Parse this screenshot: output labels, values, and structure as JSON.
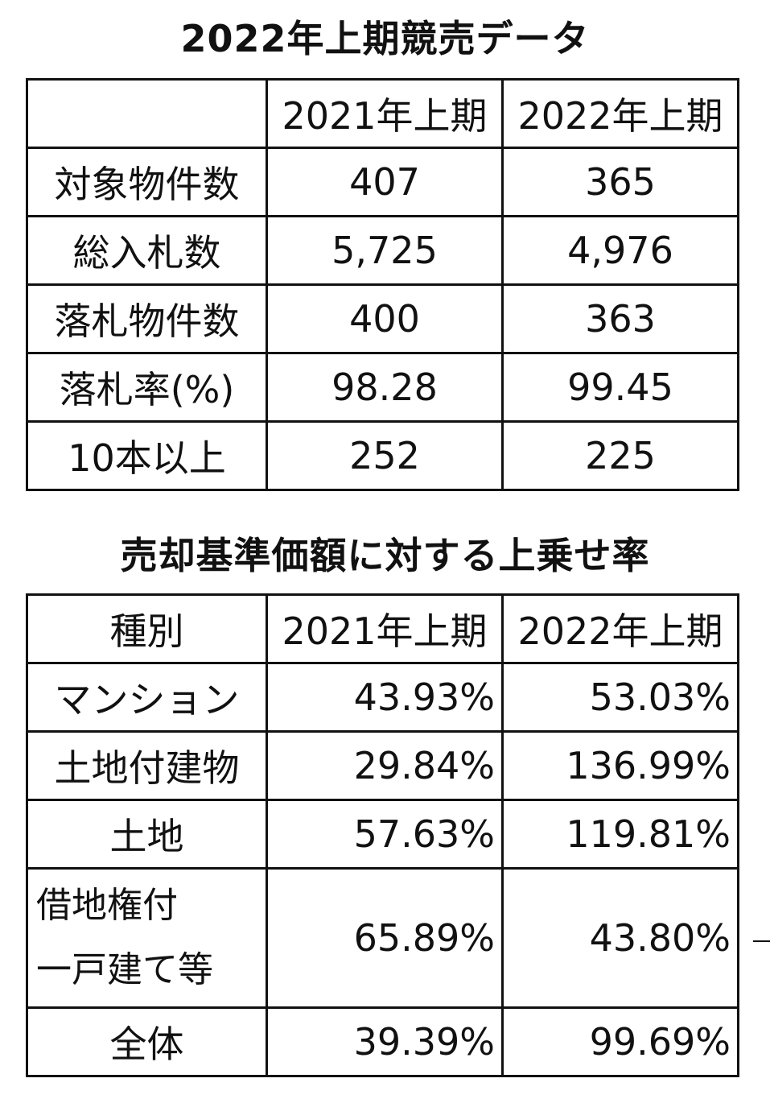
{
  "section1": {
    "title": "2022年上期競売データ",
    "headers": [
      "",
      "2021年上期",
      "2022年上期"
    ],
    "rows": [
      {
        "label": "対象物件数",
        "v2021": "407",
        "v2022": "365"
      },
      {
        "label": "総入札数",
        "v2021": "5,725",
        "v2022": "4,976"
      },
      {
        "label": "落札物件数",
        "v2021": "400",
        "v2022": "363"
      },
      {
        "label": "落札率(%)",
        "v2021": "98.28",
        "v2022": "99.45"
      },
      {
        "label": "10本以上",
        "v2021": "252",
        "v2022": "225"
      }
    ]
  },
  "section2": {
    "title": "売却基準価額に対する上乗せ率",
    "headers": [
      "種別",
      "2021年上期",
      "2022年上期"
    ],
    "rows": [
      {
        "label": "マンション",
        "v2021": "43.93%",
        "v2022": "53.03%"
      },
      {
        "label": "土地付建物",
        "v2021": "29.84%",
        "v2022": "136.99%"
      },
      {
        "label": "土地",
        "v2021": "57.63%",
        "v2022": "119.81%"
      },
      {
        "label_line1": "借地権付",
        "label_line2": "一戸建て等",
        "v2021": "65.89%",
        "v2022": "43.80%"
      },
      {
        "label": "全体",
        "v2021": "39.39%",
        "v2022": "99.69%"
      }
    ]
  }
}
